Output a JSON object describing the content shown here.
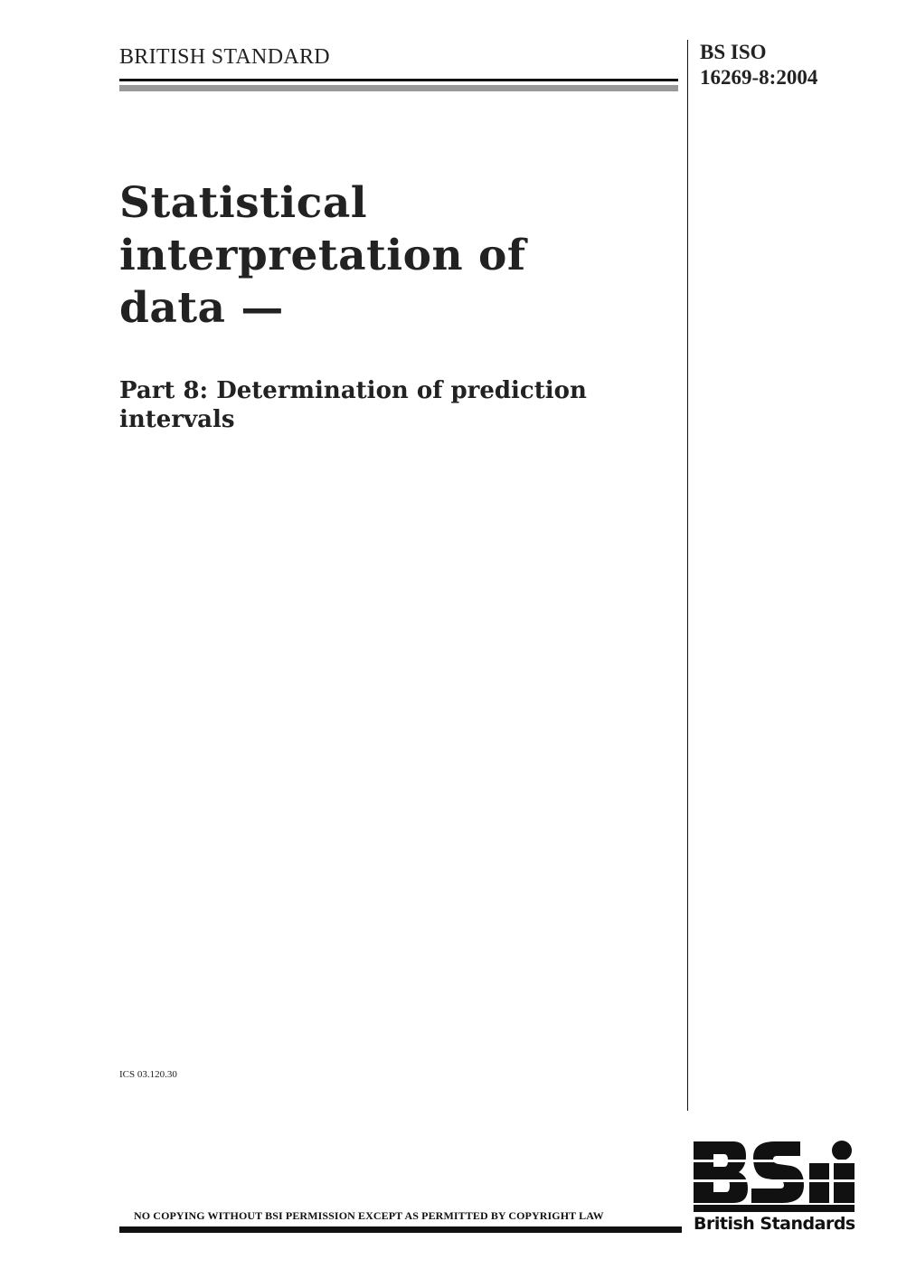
{
  "header": {
    "series_label": "BRITISH STANDARD",
    "standard_number_line1": "BS ISO",
    "standard_number_line2": "16269-8:2004"
  },
  "title": {
    "line1": "Statistical",
    "line2": "interpretation of",
    "line3": "data —"
  },
  "subtitle": {
    "line1": "Part 8: Determination of prediction",
    "line2": "intervals"
  },
  "ics": "ICS 03.120.30",
  "footer": {
    "copyright_notice": "NO COPYING WITHOUT BSI PERMISSION EXCEPT AS PERMITTED BY COPYRIGHT LAW"
  },
  "logo": {
    "mark": "BSi",
    "text": "British Standards"
  }
}
